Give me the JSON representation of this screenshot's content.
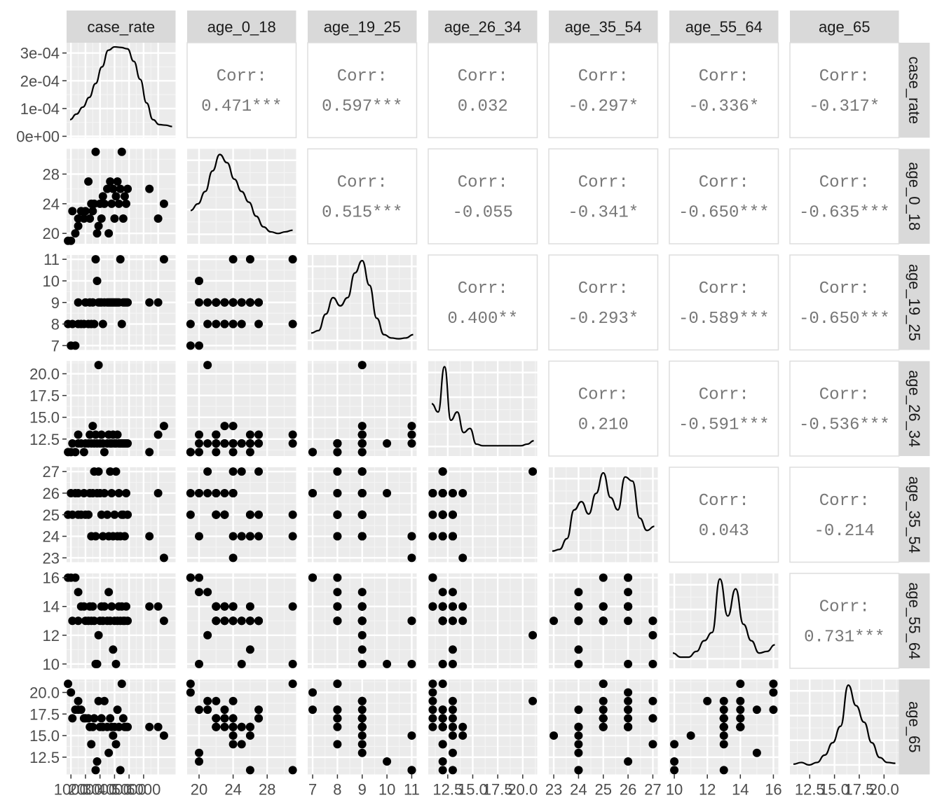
{
  "chart_data": {
    "type": "scatter-matrix",
    "variables": [
      "case_rate",
      "age_0_18",
      "age_19_25",
      "age_26_34",
      "age_35_54",
      "age_55_64",
      "age_65"
    ],
    "correlation_label": "Corr:",
    "correlations": [
      [
        "",
        "0.471***",
        "0.597***",
        "0.032",
        "-0.297*",
        "-0.336*",
        "-0.317*"
      ],
      [
        "",
        "",
        "0.515***",
        "-0.055",
        "-0.341*",
        "-0.650***",
        "-0.635***"
      ],
      [
        "",
        "",
        "",
        "0.400**",
        "-0.293*",
        "-0.589***",
        "-0.650***"
      ],
      [
        "",
        "",
        "",
        "",
        "0.210",
        "-0.591***",
        "-0.536***"
      ],
      [
        "",
        "",
        "",
        "",
        "",
        "0.043",
        "-0.214"
      ],
      [
        "",
        "",
        "",
        "",
        "",
        "",
        "0.731***"
      ],
      [
        "",
        "",
        "",
        "",
        "",
        "",
        ""
      ]
    ],
    "axes": {
      "case_rate": {
        "range": [
          700,
          8200
        ],
        "ticks": [
          1000,
          2000,
          3000,
          4000,
          5000,
          6000
        ],
        "tick_labels": [
          "1000",
          "2000",
          "3000",
          "4000",
          "5000",
          "6000"
        ]
      },
      "age_0_18": {
        "range": [
          18.6,
          31.4
        ],
        "ticks": [
          20,
          24,
          28
        ],
        "tick_labels": [
          "20",
          "24",
          "28"
        ]
      },
      "age_19_25": {
        "range": [
          6.8,
          11.2
        ],
        "ticks": [
          7,
          8,
          9,
          10,
          11
        ],
        "tick_labels": [
          "7",
          "8",
          "9",
          "10",
          "11"
        ]
      },
      "age_26_34": {
        "range": [
          10.55,
          21.45
        ],
        "ticks": [
          12.5,
          15.0,
          17.5,
          20.0
        ],
        "tick_labels": [
          "12.5",
          "15.0",
          "17.5",
          "20.0"
        ]
      },
      "age_35_54": {
        "range": [
          22.8,
          27.2
        ],
        "ticks": [
          23,
          24,
          25,
          26,
          27
        ],
        "tick_labels": [
          "23",
          "24",
          "25",
          "26",
          "27"
        ]
      },
      "age_55_64": {
        "range": [
          9.7,
          16.3
        ],
        "ticks": [
          10,
          12,
          14,
          16
        ],
        "tick_labels": [
          "10",
          "12",
          "14",
          "16"
        ]
      },
      "age_65": {
        "range": [
          10.5,
          21.5
        ],
        "ticks": [
          12.5,
          15.0,
          17.5,
          20.0
        ],
        "tick_labels": [
          "12.5",
          "15.0",
          "17.5",
          "20.0"
        ]
      }
    },
    "density_y_axis": {
      "range": [
        -5e-06,
        0.000337
      ],
      "ticks": [
        0,
        0.0001,
        0.0002,
        0.0003
      ],
      "tick_labels": [
        "0e+00",
        "1e-04",
        "2e-04",
        "3e-04"
      ]
    },
    "densities": [
      [
        6e-05,
        8e-05,
        0.000105,
        0.00014,
        0.00019,
        0.00025,
        0.00031,
        0.000322,
        0.00032,
        0.000315,
        0.00027,
        0.000205,
        0.00012,
        6e-05,
        4.2e-05,
        4e-05,
        3.5e-05
      ],
      [
        0.32,
        0.4,
        0.55,
        0.8,
        1.0,
        0.9,
        0.7,
        0.55,
        0.42,
        0.25,
        0.12,
        0.06,
        0.04,
        0.06,
        0.08
      ],
      [
        0.12,
        0.15,
        0.35,
        0.55,
        0.45,
        0.55,
        0.85,
        1.0,
        0.7,
        0.3,
        0.1,
        0.06,
        0.05,
        0.06,
        0.1
      ],
      [
        0.55,
        0.45,
        1.0,
        0.35,
        0.45,
        0.2,
        0.25,
        0.06,
        0.04,
        0.04,
        0.04,
        0.04,
        0.04,
        0.04,
        0.04,
        0.06,
        0.1
      ],
      [
        0.05,
        0.07,
        0.2,
        0.55,
        0.65,
        0.5,
        0.75,
        1.0,
        0.7,
        0.55,
        0.95,
        0.9,
        0.45,
        0.3,
        0.35
      ],
      [
        0.1,
        0.05,
        0.05,
        0.12,
        0.25,
        0.35,
        1.0,
        0.55,
        0.88,
        0.45,
        0.25,
        0.1,
        0.12,
        0.2
      ],
      [
        0.04,
        0.06,
        0.03,
        0.06,
        0.15,
        0.3,
        0.5,
        1.0,
        0.75,
        0.55,
        0.3,
        0.12,
        0.06,
        0.05
      ]
    ],
    "rows": [
      {
        "case_rate": 1000,
        "age_0_18": 19,
        "age_19_25": 7,
        "age_26_34": 11,
        "age_35_54": 26,
        "age_55_64": 16,
        "age_65": 20
      },
      {
        "case_rate": 800,
        "age_0_18": 19,
        "age_19_25": 8,
        "age_26_34": 11,
        "age_35_54": 25,
        "age_55_64": 16,
        "age_65": 21
      },
      {
        "case_rate": 1300,
        "age_0_18": 20,
        "age_19_25": 7,
        "age_26_34": 11,
        "age_35_54": 26,
        "age_55_64": 16,
        "age_65": 18
      },
      {
        "case_rate": 1500,
        "age_0_18": 21,
        "age_19_25": 8,
        "age_26_34": 12,
        "age_35_54": 26,
        "age_55_64": 15,
        "age_65": 18
      },
      {
        "case_rate": 1500,
        "age_0_18": 22,
        "age_19_25": 9,
        "age_26_34": 13,
        "age_35_54": 25,
        "age_55_64": 13,
        "age_65": 19
      },
      {
        "case_rate": 1700,
        "age_0_18": 23,
        "age_19_25": 8,
        "age_26_34": 12,
        "age_35_54": 25,
        "age_55_64": 14,
        "age_65": 18
      },
      {
        "case_rate": 1900,
        "age_0_18": 22,
        "age_19_25": 8,
        "age_26_34": 11,
        "age_35_54": 26,
        "age_55_64": 14,
        "age_65": 17
      },
      {
        "case_rate": 2000,
        "age_0_18": 23,
        "age_19_25": 9,
        "age_26_34": 12,
        "age_35_54": 25,
        "age_55_64": 13,
        "age_65": 17
      },
      {
        "case_rate": 2200,
        "age_0_18": 27,
        "age_19_25": 8,
        "age_26_34": 12,
        "age_35_54": 25,
        "age_55_64": 13,
        "age_65": 17
      },
      {
        "case_rate": 2300,
        "age_0_18": 22,
        "age_19_25": 9,
        "age_26_34": 13,
        "age_35_54": 26,
        "age_55_64": 14,
        "age_65": 16
      },
      {
        "case_rate": 2400,
        "age_0_18": 24,
        "age_19_25": 8,
        "age_26_34": 12,
        "age_35_54": 24,
        "age_55_64": 13,
        "age_65": 14
      },
      {
        "case_rate": 2500,
        "age_0_18": 23,
        "age_19_25": 9,
        "age_26_34": 14,
        "age_35_54": 26,
        "age_55_64": 14,
        "age_65": 16
      },
      {
        "case_rate": 2600,
        "age_0_18": 24,
        "age_19_25": 8,
        "age_26_34": 12,
        "age_35_54": 27,
        "age_55_64": 13,
        "age_65": 17
      },
      {
        "case_rate": 2800,
        "age_0_18": 20,
        "age_19_25": 10,
        "age_26_34": 12,
        "age_35_54": 26,
        "age_55_64": 10,
        "age_65": 12
      },
      {
        "case_rate": 2900,
        "age_0_18": 21,
        "age_19_25": 9,
        "age_26_34": 21,
        "age_35_54": 27,
        "age_55_64": 12,
        "age_65": 19
      },
      {
        "case_rate": 3000,
        "age_0_18": 24,
        "age_19_25": 9,
        "age_26_34": 12,
        "age_35_54": 26,
        "age_55_64": 13,
        "age_65": 16
      },
      {
        "case_rate": 3100,
        "age_0_18": 22,
        "age_19_25": 9,
        "age_26_34": 13,
        "age_35_54": 25,
        "age_55_64": 14,
        "age_65": 17
      },
      {
        "case_rate": 3200,
        "age_0_18": 25,
        "age_19_25": 8,
        "age_26_34": 12,
        "age_35_54": 24,
        "age_55_64": 13,
        "age_65": 16
      },
      {
        "case_rate": 3300,
        "age_0_18": 24,
        "age_19_25": 9,
        "age_26_34": 11,
        "age_35_54": 26,
        "age_55_64": 14,
        "age_65": 19
      },
      {
        "case_rate": 3500,
        "age_0_18": 26,
        "age_19_25": 9,
        "age_26_34": 12,
        "age_35_54": 25,
        "age_55_64": 13,
        "age_65": 16
      },
      {
        "case_rate": 3600,
        "age_0_18": 20,
        "age_19_25": 9,
        "age_26_34": 13,
        "age_35_54": 24,
        "age_55_64": 15,
        "age_65": 13
      },
      {
        "case_rate": 3700,
        "age_0_18": 27,
        "age_19_25": 9,
        "age_26_34": 12,
        "age_35_54": 27,
        "age_55_64": 13,
        "age_65": 17
      },
      {
        "case_rate": 3800,
        "age_0_18": 24,
        "age_19_25": 9,
        "age_26_34": 12,
        "age_35_54": 26,
        "age_55_64": 14,
        "age_65": 16
      },
      {
        "case_rate": 3900,
        "age_0_18": 26,
        "age_19_25": 9,
        "age_26_34": 13,
        "age_35_54": 24,
        "age_55_64": 11,
        "age_65": 15
      },
      {
        "case_rate": 4000,
        "age_0_18": 22,
        "age_19_25": 9,
        "age_26_34": 12,
        "age_35_54": 25,
        "age_55_64": 13,
        "age_65": 16
      },
      {
        "case_rate": 4100,
        "age_0_18": 25,
        "age_19_25": 9,
        "age_26_34": 12,
        "age_35_54": 27,
        "age_55_64": 10,
        "age_65": 14
      },
      {
        "case_rate": 4200,
        "age_0_18": 27,
        "age_19_25": 9,
        "age_26_34": 13,
        "age_35_54": 24,
        "age_55_64": 13,
        "age_65": 18
      },
      {
        "case_rate": 4300,
        "age_0_18": 24,
        "age_19_25": 9,
        "age_26_34": 12,
        "age_35_54": 26,
        "age_55_64": 14,
        "age_65": 16
      },
      {
        "case_rate": 4400,
        "age_0_18": 26,
        "age_19_25": 11,
        "age_26_34": 12,
        "age_35_54": 24,
        "age_55_64": 13,
        "age_65": 11
      },
      {
        "case_rate": 4500,
        "age_0_18": 31,
        "age_19_25": 8,
        "age_26_34": 12,
        "age_35_54": 25,
        "age_55_64": 14,
        "age_65": 21
      },
      {
        "case_rate": 4600,
        "age_0_18": 22,
        "age_19_25": 9,
        "age_26_34": 12,
        "age_35_54": 25,
        "age_55_64": 13,
        "age_65": 17
      },
      {
        "case_rate": 4700,
        "age_0_18": 25,
        "age_19_25": 9,
        "age_26_34": 12,
        "age_35_54": 24,
        "age_55_64": 13,
        "age_65": 16
      },
      {
        "case_rate": 4800,
        "age_0_18": 24,
        "age_19_25": 9,
        "age_26_34": 12,
        "age_35_54": 26,
        "age_55_64": 14,
        "age_65": 16
      },
      {
        "case_rate": 4900,
        "age_0_18": 26,
        "age_19_25": 9,
        "age_26_34": 12,
        "age_35_54": 25,
        "age_55_64": 13,
        "age_65": 16
      },
      {
        "case_rate": 6400,
        "age_0_18": 26,
        "age_19_25": 9,
        "age_26_34": 11,
        "age_35_54": 24,
        "age_55_64": 14,
        "age_65": 16
      },
      {
        "case_rate": 7000,
        "age_0_18": 22,
        "age_19_25": 9,
        "age_26_34": 13,
        "age_35_54": 26,
        "age_55_64": 14,
        "age_65": 16
      },
      {
        "case_rate": 7400,
        "age_0_18": 24,
        "age_19_25": 11,
        "age_26_34": 14,
        "age_35_54": 23,
        "age_55_64": 13,
        "age_65": 15
      },
      {
        "case_rate": 1100,
        "age_0_18": 23,
        "age_19_25": 8,
        "age_26_34": 12,
        "age_35_54": 25,
        "age_55_64": 13,
        "age_65": 17
      },
      {
        "case_rate": 2700,
        "age_0_18": 31,
        "age_19_25": 11,
        "age_26_34": 13,
        "age_35_54": 24,
        "age_55_64": 10,
        "age_65": 11
      }
    ]
  }
}
